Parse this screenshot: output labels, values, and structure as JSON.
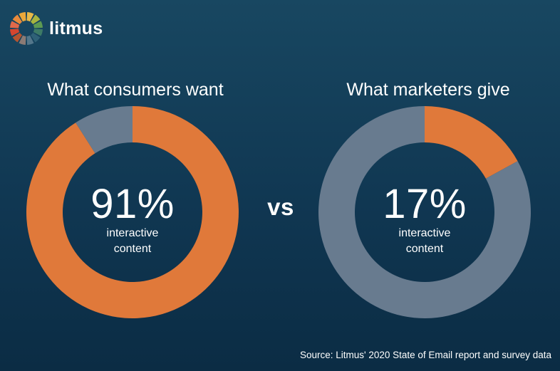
{
  "brand": {
    "name": "litmus",
    "logo_colors": [
      "#e8b948",
      "#a7b43f",
      "#5d9a52",
      "#3d7a66",
      "#2f6177",
      "#54778b",
      "#8b7b75",
      "#b6542f",
      "#d5462f",
      "#e2694a",
      "#e98a3b",
      "#eba83a"
    ]
  },
  "vs_label": "vs",
  "source": "Source: Litmus' 2020 State of Email report and survey data",
  "colors": {
    "highlight": "#e0793a",
    "rest": "#687b8f",
    "background": "#123a55"
  },
  "chart_data": [
    {
      "type": "pie",
      "title": "What consumers want",
      "center_value": "91%",
      "center_label_line1": "interactive",
      "center_label_line2": "content",
      "slices": [
        {
          "label": "interactive content",
          "value": 91,
          "color": "#e0793a"
        },
        {
          "label": "",
          "value": 9,
          "color": "#687b8f"
        }
      ]
    },
    {
      "type": "pie",
      "title": "What marketers give",
      "center_value": "17%",
      "center_label_line1": "interactive",
      "center_label_line2": "content",
      "slices": [
        {
          "label": "interactive content",
          "value": 17,
          "color": "#e0793a"
        },
        {
          "label": "",
          "value": 83,
          "color": "#687b8f"
        }
      ]
    }
  ]
}
